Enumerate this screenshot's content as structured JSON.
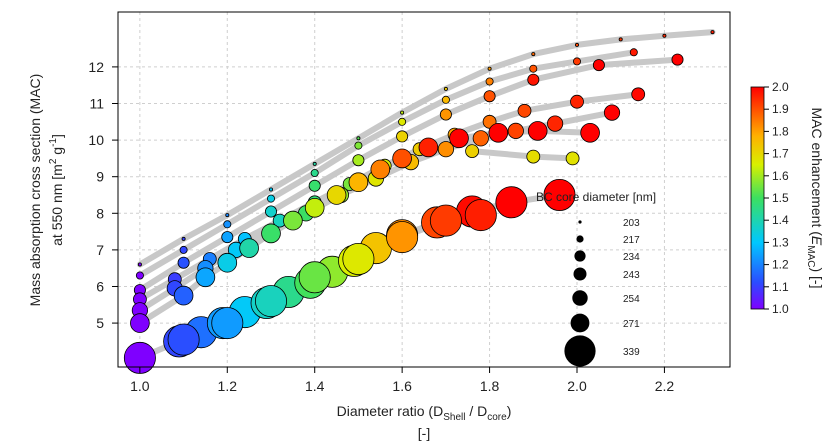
{
  "chart_data": {
    "type": "scatter",
    "xlabel": "Diameter ratio (D",
    "xlabel_sub1": "Shell",
    "xlabel_mid": " / D",
    "xlabel_sub2": "core",
    "xlabel_end": ")",
    "xlabel_units": "[-]",
    "ylabel_line1": "Mass absorption cross section (MAC)",
    "ylabel_line2": "at 550 nm  [m",
    "ylabel_sup1": "2",
    "ylabel_mid": " g",
    "ylabel_sup2": "-1",
    "ylabel_end": "]",
    "xlim": [
      0.95,
      2.35
    ],
    "ylim": [
      3.8,
      13.5
    ],
    "x_ticks": [
      "1.0",
      "1.2",
      "1.4",
      "1.6",
      "1.8",
      "2.0",
      "2.2"
    ],
    "x_tick_values": [
      1.0,
      1.2,
      1.4,
      1.6,
      1.8,
      2.0,
      2.2
    ],
    "y_ticks": [
      "5",
      "6",
      "7",
      "8",
      "9",
      "10",
      "11",
      "12"
    ],
    "y_tick_values": [
      5,
      6,
      7,
      8,
      9,
      10,
      11,
      12
    ],
    "grid": true,
    "colorbar": {
      "label_pre": "MAC enhancement (",
      "label_var": "E",
      "label_sub": "MAC",
      "label_post": ") [-]",
      "range": [
        1.0,
        2.0
      ],
      "ticks": [
        "1.0",
        "1.1",
        "1.2",
        "1.3",
        "1.4",
        "1.5",
        "1.6",
        "1.7",
        "1.8",
        "1.9",
        "2.0"
      ],
      "tick_values": [
        1.0,
        1.1,
        1.2,
        1.3,
        1.4,
        1.5,
        1.6,
        1.7,
        1.8,
        1.9,
        2.0
      ]
    },
    "size_legend": {
      "title": "BC core diameter [nm]",
      "entries": [
        {
          "label": "203",
          "core": 203
        },
        {
          "label": "217",
          "core": 217
        },
        {
          "label": "234",
          "core": 234
        },
        {
          "label": "243",
          "core": 243
        },
        {
          "label": "254",
          "core": 254
        },
        {
          "label": "271",
          "core": 271
        },
        {
          "label": "339",
          "core": 339
        }
      ]
    },
    "series": [
      {
        "core": 203,
        "mac0": 6.6,
        "x": [
          1.0,
          1.1,
          1.2,
          1.3,
          1.4,
          1.5,
          1.6,
          1.7,
          1.8,
          1.9,
          2.0,
          2.1,
          2.2,
          2.31
        ],
        "y": [
          6.6,
          7.3,
          7.95,
          8.65,
          9.35,
          10.05,
          10.75,
          11.4,
          11.95,
          12.35,
          12.6,
          12.75,
          12.85,
          12.95
        ]
      },
      {
        "core": 217,
        "mac0": 6.3,
        "x": [
          1.0,
          1.1,
          1.2,
          1.3,
          1.4,
          1.5,
          1.6,
          1.7,
          1.8,
          1.9,
          2.0,
          2.13
        ],
        "y": [
          6.3,
          7.0,
          7.7,
          8.4,
          9.1,
          9.85,
          10.5,
          11.1,
          11.6,
          11.95,
          12.15,
          12.4
        ]
      },
      {
        "core": 234,
        "mac0": 5.9,
        "x": [
          1.0,
          1.1,
          1.2,
          1.3,
          1.4,
          1.5,
          1.6,
          1.7,
          1.8,
          1.9,
          2.05,
          2.23
        ],
        "y": [
          5.9,
          6.65,
          7.35,
          8.05,
          8.75,
          9.45,
          10.1,
          10.7,
          11.2,
          11.65,
          12.05,
          12.2
        ]
      },
      {
        "core": 243,
        "mac0": 5.65,
        "x": [
          1.0,
          1.08,
          1.16,
          1.24,
          1.32,
          1.4,
          1.48,
          1.56,
          1.64,
          1.72,
          1.8,
          1.88,
          2.0,
          2.14
        ],
        "y": [
          5.65,
          6.2,
          6.75,
          7.3,
          7.8,
          8.3,
          8.8,
          9.3,
          9.75,
          10.15,
          10.5,
          10.8,
          11.05,
          11.25
        ]
      },
      {
        "core": 254,
        "mac0": 5.35,
        "x": [
          1.0,
          1.08,
          1.15,
          1.22,
          1.3,
          1.38,
          1.46,
          1.54,
          1.62,
          1.7,
          1.78,
          1.86,
          1.95,
          2.08
        ],
        "y": [
          5.35,
          5.95,
          6.5,
          7.0,
          7.5,
          8.0,
          8.5,
          8.95,
          9.4,
          9.75,
          10.05,
          10.25,
          10.45,
          10.75
        ]
      },
      {
        "core": 271,
        "mac0": 5.0,
        "x": [
          1.0,
          1.1,
          1.15,
          1.2,
          1.25,
          1.3,
          1.35,
          1.4,
          1.45,
          1.5,
          1.55,
          1.6,
          1.66,
          1.73,
          1.82,
          1.91,
          2.03
        ],
        "y": [
          5.0,
          5.75,
          6.25,
          6.65,
          7.05,
          7.45,
          7.8,
          8.15,
          8.5,
          8.85,
          9.2,
          9.5,
          9.8,
          10.05,
          10.2,
          10.25,
          10.2
        ]
      },
      {
        "core": 339,
        "mac0": 4.05,
        "x": [
          1.0,
          1.09,
          1.14,
          1.19,
          1.24,
          1.29,
          1.34,
          1.39,
          1.44,
          1.49,
          1.54,
          1.6,
          1.68,
          1.76,
          1.85,
          1.96
        ],
        "y": [
          4.05,
          4.5,
          4.75,
          5.0,
          5.3,
          5.55,
          5.85,
          6.1,
          6.4,
          6.7,
          7.05,
          7.4,
          7.75,
          8.05,
          8.3,
          8.5
        ]
      }
    ],
    "series_extra": [
      {
        "core": 339,
        "x": [
          1.1,
          1.2,
          1.3,
          1.4,
          1.5,
          1.6,
          1.7,
          1.78
        ],
        "y": [
          4.55,
          5.0,
          5.6,
          6.25,
          6.75,
          7.35,
          7.8,
          7.95
        ]
      },
      {
        "core": 243,
        "x": [
          1.76,
          1.9,
          1.99
        ],
        "y": [
          9.7,
          9.55,
          9.5
        ]
      }
    ]
  }
}
